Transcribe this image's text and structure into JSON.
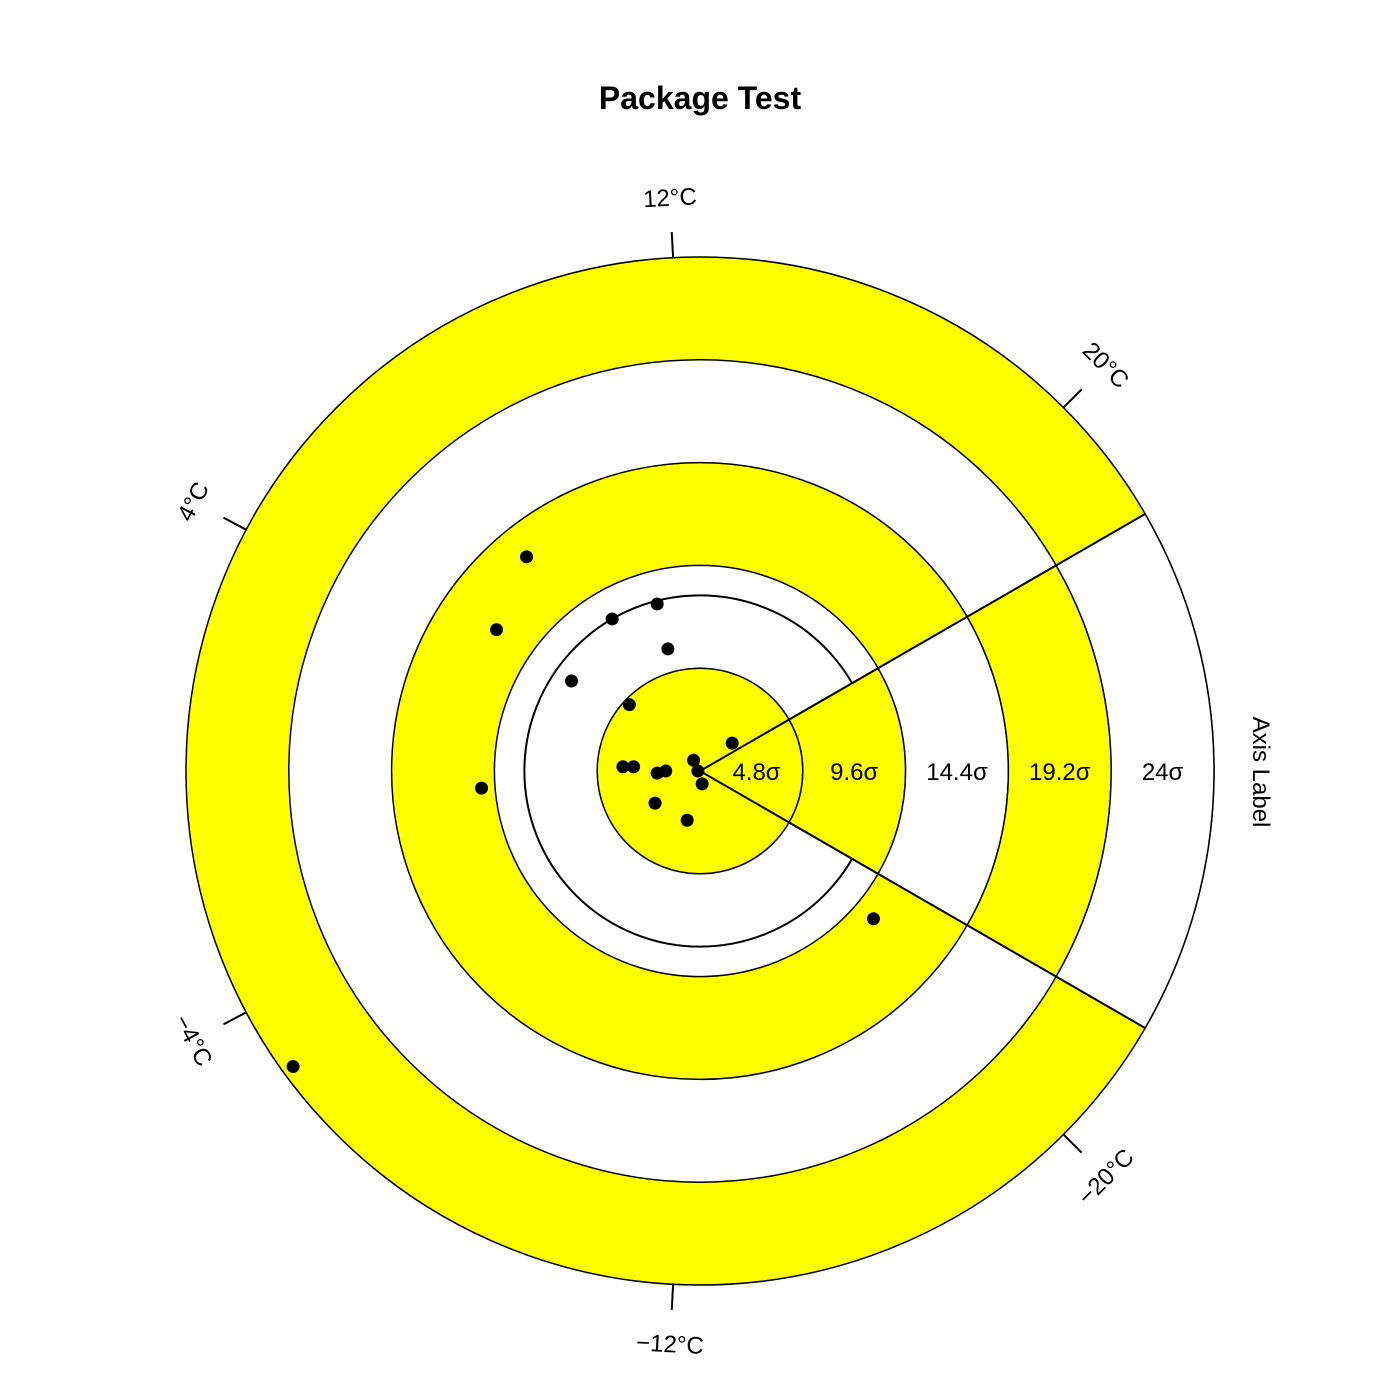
{
  "chart_data": {
    "type": "scatter",
    "title": "Package Test",
    "ylabel": "Axis Label",
    "colors": {
      "band_fill": "#ffff00",
      "band_alt": "#ffffff",
      "stroke": "#000000",
      "points": "#000000"
    },
    "radial_bands": [
      4.8,
      9.6,
      14.4,
      19.2,
      24
    ],
    "radial_labels": [
      "4.8σ",
      "9.6σ",
      "14.4σ",
      "19.2σ",
      "24σ"
    ],
    "inner_ring": 8.2,
    "wedge_angles_deg": [
      30,
      -30
    ],
    "angle_ticks": [
      {
        "label": "12°C",
        "angle": 93
      },
      {
        "label": "20°C",
        "angle": 45
      },
      {
        "label": "4°C",
        "angle": 152
      },
      {
        "label": "−4°C",
        "angle": 208
      },
      {
        "label": "−12°C",
        "angle": 267
      },
      {
        "label": "−20°C",
        "angle": 315
      }
    ],
    "points": [
      {
        "x": -8.1,
        "y": 10.0
      },
      {
        "x": -2.0,
        "y": 7.8
      },
      {
        "x": -4.1,
        "y": 7.1
      },
      {
        "x": -9.5,
        "y": 6.6
      },
      {
        "x": -1.5,
        "y": 5.7
      },
      {
        "x": -6.0,
        "y": 4.2
      },
      {
        "x": -3.3,
        "y": 3.1
      },
      {
        "x": 1.5,
        "y": 1.3
      },
      {
        "x": -3.6,
        "y": 0.2
      },
      {
        "x": -3.1,
        "y": 0.2
      },
      {
        "x": -0.3,
        "y": 0.5
      },
      {
        "x": -1.6,
        "y": 0.0
      },
      {
        "x": -2.0,
        "y": -0.1
      },
      {
        "x": -0.1,
        "y": 0.0
      },
      {
        "x": 0.1,
        "y": -0.6
      },
      {
        "x": -2.1,
        "y": -1.5
      },
      {
        "x": -0.6,
        "y": -2.3
      },
      {
        "x": -10.2,
        "y": -0.8
      },
      {
        "x": 8.1,
        "y": -6.9
      },
      {
        "x": -19.0,
        "y": -13.8
      }
    ]
  }
}
